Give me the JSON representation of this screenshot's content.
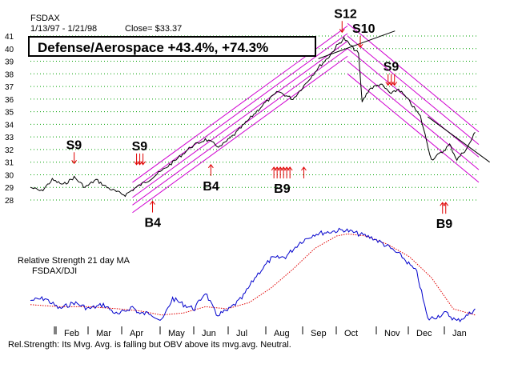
{
  "header": {
    "symbol": "FSDAX",
    "date_range": "1/13/97 - 1/21/98",
    "close": "Close= $33.37"
  },
  "title": "Defense/Aerospace +43.4%,  +74.3%",
  "rs_panel": {
    "title": "Relative Strength 21 day MA",
    "subtitle": "FSDAX/DJI"
  },
  "footer": "Rel.Strength: Its Mvg. Avg. is falling but OBV above its mvg.avg. Neutral.",
  "colors": {
    "price": "#000000",
    "channel": "#d000d0",
    "signal": "#e00000",
    "rs": "#0000cc",
    "rs_ma": "#e00000",
    "grid": "#00a000"
  },
  "chart_data": [
    {
      "type": "line",
      "title": "FSDAX",
      "ylim": [
        28,
        41
      ],
      "yticks": [
        28,
        29,
        30,
        31,
        32,
        33,
        34,
        35,
        36,
        37,
        38,
        39,
        40,
        41
      ],
      "x_domain": [
        0,
        12.3
      ],
      "series": [
        {
          "name": "FSDAX price",
          "x": [
            0,
            0.3,
            0.6,
            0.9,
            1.2,
            1.5,
            1.8,
            2.1,
            2.4,
            2.6,
            2.9,
            3.2,
            3.6,
            4.0,
            4.4,
            4.8,
            5.2,
            5.6,
            6.0,
            6.4,
            6.8,
            7.2,
            7.6,
            7.9,
            8.2,
            8.4,
            8.6,
            8.8,
            9.0,
            9.1,
            9.3,
            9.6,
            9.9,
            10.1,
            10.4,
            10.7,
            11.0,
            11.3,
            11.5,
            11.7,
            12.0,
            12.2
          ],
          "values": [
            29.0,
            28.7,
            29.6,
            29.2,
            29.8,
            29.0,
            29.6,
            29.0,
            28.6,
            28.4,
            29.0,
            29.5,
            30.3,
            31.2,
            32.2,
            32.8,
            32.2,
            33.2,
            34.4,
            35.6,
            36.6,
            36.0,
            37.4,
            38.5,
            39.4,
            40.2,
            40.8,
            40.2,
            39.6,
            35.8,
            36.8,
            37.2,
            36.4,
            36.8,
            35.8,
            34.6,
            31.2,
            31.8,
            32.4,
            31.2,
            32.2,
            33.37
          ]
        }
      ],
      "channels": {
        "up_lines": [
          {
            "x": [
              2.8,
              8.7
            ],
            "values": [
              28.2,
              40.6
            ]
          },
          {
            "x": [
              2.8,
              8.7
            ],
            "values": [
              28.8,
              41.2
            ]
          },
          {
            "x": [
              2.8,
              8.7
            ],
            "values": [
              27.6,
              40.0
            ]
          },
          {
            "x": [
              2.8,
              8.7
            ],
            "values": [
              29.4,
              41.8
            ]
          },
          {
            "x": [
              2.8,
              8.7
            ],
            "values": [
              27.0,
              39.4
            ]
          }
        ],
        "down_lines": [
          {
            "x": [
              8.7,
              12.3
            ],
            "values": [
              40.0,
              31.4
            ]
          },
          {
            "x": [
              8.7,
              12.3
            ],
            "values": [
              41.0,
              32.4
            ]
          },
          {
            "x": [
              8.7,
              12.3
            ],
            "values": [
              39.0,
              30.4
            ]
          },
          {
            "x": [
              8.7,
              12.3
            ],
            "values": [
              42.0,
              33.4
            ]
          },
          {
            "x": [
              8.7,
              12.3
            ],
            "values": [
              38.0,
              29.4
            ]
          }
        ],
        "black_lines": [
          {
            "x": [
              7.9,
              10.0
            ],
            "values": [
              39.2,
              41.4
            ]
          },
          {
            "x": [
              10.9,
              12.6
            ],
            "values": [
              34.6,
              31.0
            ]
          }
        ]
      },
      "signals": [
        {
          "label": "S9",
          "x": 1.2,
          "value": 30.9,
          "dir": "down",
          "count": 1
        },
        {
          "label": "S9",
          "x": 3.0,
          "value": 30.8,
          "dir": "down",
          "count": 3
        },
        {
          "label": "B4",
          "x": 3.35,
          "value": 27.9,
          "dir": "up",
          "count": 1
        },
        {
          "label": "B4",
          "x": 4.95,
          "value": 30.8,
          "dir": "up",
          "count": 1
        },
        {
          "label": "B9",
          "x": 6.9,
          "value": 30.6,
          "dir": "up",
          "count": 6
        },
        {
          "label": "",
          "x": 7.5,
          "value": 30.6,
          "dir": "up",
          "count": 1
        },
        {
          "label": "S12",
          "x": 8.55,
          "value": 41.3,
          "dir": "down",
          "count": 1
        },
        {
          "label": "S10",
          "x": 9.05,
          "value": 40.1,
          "dir": "down",
          "count": 1
        },
        {
          "label": "S9",
          "x": 9.9,
          "value": 37.1,
          "dir": "down",
          "count": 3
        },
        {
          "label": "B9",
          "x": 11.35,
          "value": 27.8,
          "dir": "up",
          "count": 2
        }
      ]
    },
    {
      "type": "line",
      "title": "Relative Strength 21 day MA",
      "ylim": [
        0,
        100
      ],
      "x_domain": [
        0,
        12.3
      ],
      "series": [
        {
          "name": "Relative Strength",
          "x": [
            0,
            0.4,
            0.8,
            1.2,
            1.6,
            2.0,
            2.4,
            2.8,
            3.0,
            3.3,
            3.6,
            3.9,
            4.2,
            4.5,
            4.8,
            5.1,
            5.4,
            5.8,
            6.2,
            6.6,
            7.0,
            7.4,
            7.8,
            8.2,
            8.6,
            9.0,
            9.4,
            9.8,
            10.2,
            10.6,
            10.9,
            11.1,
            11.4,
            11.7,
            12.0,
            12.2
          ],
          "values": [
            28,
            30,
            20,
            26,
            20,
            24,
            14,
            22,
            15,
            16,
            8,
            30,
            24,
            20,
            36,
            14,
            18,
            30,
            52,
            68,
            70,
            84,
            92,
            94,
            96,
            92,
            88,
            80,
            70,
            55,
            10,
            12,
            16,
            8,
            14,
            20
          ]
        },
        {
          "name": "21 day MA",
          "x": [
            0,
            0.8,
            1.6,
            2.4,
            3.0,
            3.6,
            4.2,
            4.8,
            5.4,
            6.0,
            6.6,
            7.2,
            7.8,
            8.4,
            8.7,
            9.2,
            9.8,
            10.4,
            11.0,
            11.6,
            12.2
          ],
          "values": [
            24,
            22,
            22,
            20,
            18,
            14,
            16,
            22,
            20,
            26,
            40,
            58,
            78,
            90,
            92,
            90,
            82,
            70,
            50,
            20,
            14
          ]
        }
      ],
      "months": [
        "Feb",
        "Mar",
        "Apr",
        "May",
        "Jun",
        "Jul",
        "Aug",
        "Sep",
        "Oct",
        "Nov",
        "Dec",
        "Jan"
      ]
    }
  ]
}
